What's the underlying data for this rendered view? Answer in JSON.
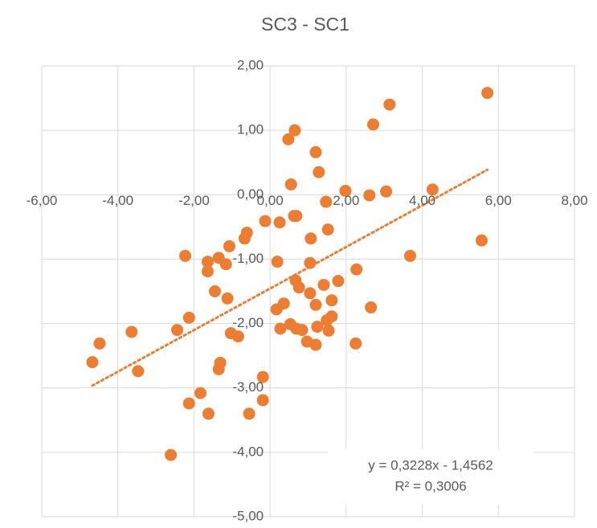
{
  "chart_data": {
    "type": "scatter",
    "title": "SC3 - SC1",
    "series": [
      {
        "color": "#ED7D31",
        "x": [
          5.71,
          3.14,
          2.71,
          0.65,
          0.48,
          1.2,
          1.28,
          0.55,
          1.98,
          2.61,
          3.05,
          4.27,
          1.47,
          -0.13,
          0.25,
          0.63,
          0.69,
          1.52,
          5.56,
          1.07,
          -0.61,
          -0.67,
          -1.07,
          -2.23,
          -1.35,
          -1.64,
          -1.16,
          0.19,
          1.05,
          3.68,
          2.27,
          -1.64,
          0.67,
          1.79,
          0.76,
          1.41,
          -1.45,
          1.05,
          -1.12,
          1.62,
          0.36,
          1.2,
          0.17,
          2.65,
          1.62,
          1.49,
          -2.13,
          0.53,
          0.27,
          0.69,
          0.84,
          1.24,
          1.54,
          -2.44,
          -3.64,
          -1.03,
          -0.84,
          0.97,
          1.2,
          2.25,
          -4.48,
          -4.67,
          -3.47,
          -1.31,
          -1.35,
          -0.19,
          -1.83,
          -2.13,
          -0.19,
          -1.62,
          -0.55,
          -2.61
        ],
        "values": [
          1.58,
          1.4,
          1.09,
          1.0,
          0.86,
          0.66,
          0.35,
          0.16,
          0.06,
          -0.01,
          0.05,
          0.08,
          -0.11,
          -0.41,
          -0.43,
          -0.33,
          -0.33,
          -0.54,
          -0.71,
          -0.68,
          -0.59,
          -0.68,
          -0.8,
          -0.95,
          -0.98,
          -1.04,
          -1.08,
          -1.04,
          -1.06,
          -0.95,
          -1.16,
          -1.19,
          -1.33,
          -1.34,
          -1.44,
          -1.4,
          -1.5,
          -1.53,
          -1.61,
          -1.64,
          -1.69,
          -1.71,
          -1.78,
          -1.75,
          -1.89,
          -1.95,
          -1.91,
          -2.01,
          -2.08,
          -2.08,
          -2.1,
          -2.05,
          -2.11,
          -2.1,
          -2.13,
          -2.15,
          -2.2,
          -2.28,
          -2.33,
          -2.31,
          -2.31,
          -2.6,
          -2.74,
          -2.61,
          -2.71,
          -2.83,
          -3.08,
          -3.24,
          -3.19,
          -3.4,
          -3.4,
          -4.04
        ]
      }
    ],
    "trendline": {
      "slope": 0.3228,
      "intercept": -1.4562,
      "color": "#ED7D31",
      "equation": "y = 0,3228x - 1,4562",
      "r_squared": "R² = 0,3006"
    },
    "xlim": [
      -6,
      8
    ],
    "xticks": [
      {
        "value": -6,
        "label": "-6,00"
      },
      {
        "value": -4,
        "label": "-4,00"
      },
      {
        "value": -2,
        "label": "-2,00"
      },
      {
        "value": 0,
        "label": "0,00"
      },
      {
        "value": 2,
        "label": "2,00"
      },
      {
        "value": 4,
        "label": "4,00"
      },
      {
        "value": 6,
        "label": "6,00"
      },
      {
        "value": 8,
        "label": "8,00"
      }
    ],
    "ylim": [
      -5,
      2
    ],
    "yticks": [
      {
        "value": -5,
        "label": "-5,00"
      },
      {
        "value": -4,
        "label": "-4,00"
      },
      {
        "value": -3,
        "label": "-3,00"
      },
      {
        "value": -2,
        "label": "-2,00"
      },
      {
        "value": -1,
        "label": "-1,00"
      },
      {
        "value": 0,
        "label": "0,00"
      },
      {
        "value": 1,
        "label": "1,00"
      },
      {
        "value": 2,
        "label": "2,00"
      }
    ],
    "grid": true
  }
}
